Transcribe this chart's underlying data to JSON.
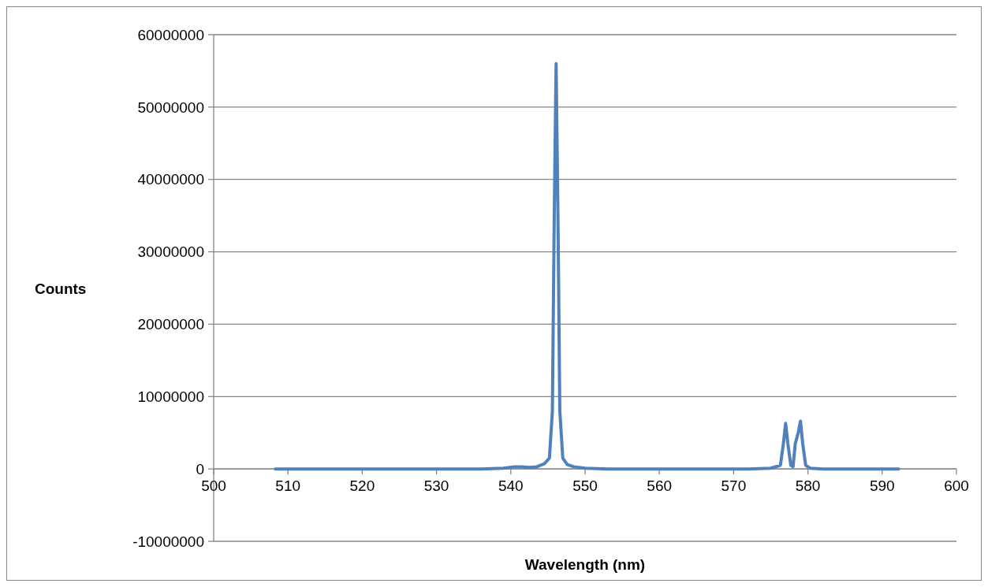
{
  "chart_data": {
    "type": "line",
    "xlabel": "Wavelength (nm)",
    "ylabel": "Counts",
    "xlim": [
      500,
      600
    ],
    "xticks": [
      500,
      510,
      520,
      530,
      540,
      550,
      560,
      570,
      580,
      590,
      600
    ],
    "ylim": [
      -10000000,
      60000000
    ],
    "yticks": [
      -10000000,
      0,
      10000000,
      20000000,
      30000000,
      40000000,
      50000000,
      60000000
    ],
    "grid": "y",
    "marker": "none",
    "line_style": "solid",
    "series": [
      {
        "color": "#4f81bd",
        "x": [
          508.3,
          512,
          516,
          520,
          524,
          528,
          532,
          536,
          539,
          540.5,
          541.5,
          542.5,
          543.5,
          544.5,
          545.2,
          545.6,
          545.85,
          546.1,
          546.35,
          546.6,
          547,
          547.6,
          548.5,
          550,
          553,
          556,
          560,
          564,
          568,
          572,
          575,
          576.3,
          576.7,
          577,
          577.3,
          577.7,
          578,
          578.3,
          578.7,
          579,
          579.3,
          579.7,
          580.3,
          582,
          585,
          588,
          592.2
        ],
        "values": [
          0,
          0,
          0,
          0,
          0,
          0,
          0,
          0,
          100000,
          300000,
          300000,
          200000,
          300000,
          700000,
          1500000,
          8000000,
          35000000,
          56000000,
          35000000,
          8000000,
          1500000,
          600000,
          300000,
          100000,
          0,
          0,
          0,
          0,
          0,
          0,
          100000,
          500000,
          3500000,
          6300000,
          3500000,
          500000,
          300000,
          3500000,
          5000000,
          6600000,
          3500000,
          500000,
          100000,
          0,
          0,
          0,
          0
        ]
      }
    ]
  }
}
